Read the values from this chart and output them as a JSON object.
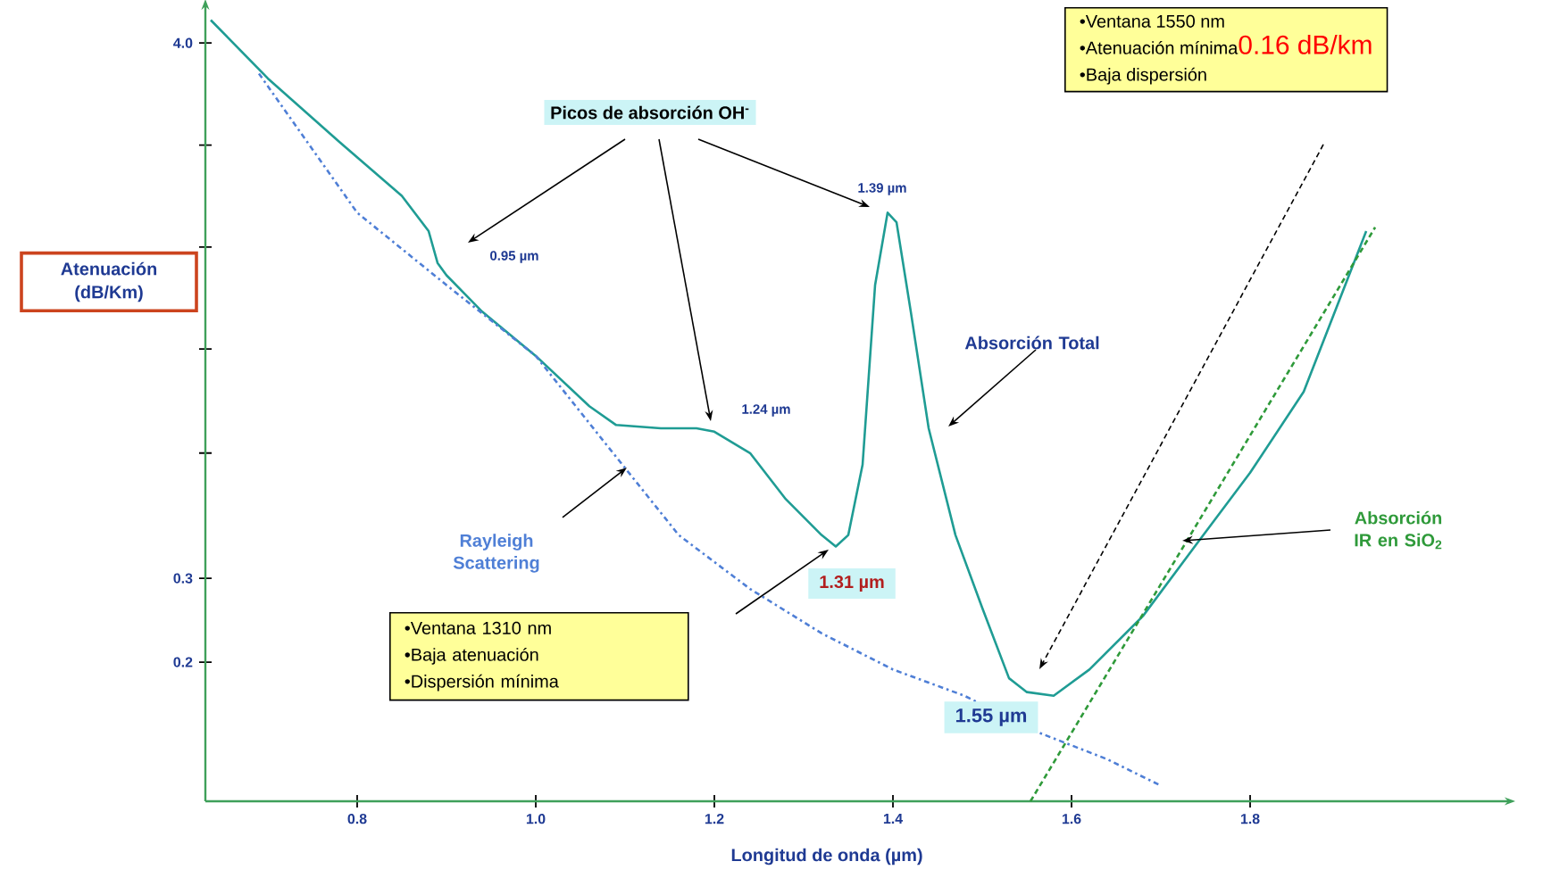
{
  "chart_data": {
    "type": "line",
    "xlabel": "Longitud de onda (µm)",
    "ylabel": "Atenuación (dB/Km)",
    "log": "y",
    "xlim": [
      0.63,
      2.09
    ],
    "ylim": [
      0.102,
      4.8
    ],
    "xticks": [
      0.8,
      {
        "value": 1,
        "label": "1.0"
      },
      1.2,
      1.4,
      1.6,
      1.8
    ],
    "yticks": [
      0.2,
      0.3,
      {
        "value": 0.55,
        "label": null
      },
      {
        "value": 0.91,
        "label": null
      },
      {
        "value": 1.49,
        "label": null
      },
      {
        "value": 2.44,
        "label": null
      },
      {
        "value": 4,
        "label": "4.0"
      }
    ],
    "series": [
      {
        "name": "Absorción Total",
        "color": "#1f9c94",
        "line_style": "solid",
        "x": [
          0.636,
          0.7,
          0.78,
          0.85,
          0.88,
          0.89,
          0.9,
          0.94,
          1.0,
          1.06,
          1.09,
          1.14,
          1.18,
          1.2,
          1.24,
          1.28,
          1.32,
          1.336,
          1.35,
          1.366,
          1.38,
          1.394,
          1.404,
          1.42,
          1.44,
          1.47,
          1.5,
          1.53,
          1.55,
          1.58,
          1.62,
          1.68,
          1.74,
          1.8,
          1.86,
          1.93
        ],
        "values": [
          4.47,
          3.37,
          2.48,
          1.91,
          1.61,
          1.38,
          1.3,
          1.09,
          0.88,
          0.69,
          0.63,
          0.62,
          0.62,
          0.61,
          0.55,
          0.44,
          0.37,
          0.35,
          0.37,
          0.52,
          1.24,
          1.76,
          1.68,
          1.09,
          0.62,
          0.37,
          0.26,
          0.185,
          0.173,
          0.17,
          0.193,
          0.25,
          0.354,
          0.5,
          0.74,
          1.61
        ]
      },
      {
        "name": "Rayleigh Scattering",
        "color": "#4f7fd6",
        "line_style": "dashed",
        "x": [
          0.69,
          0.8,
          0.9,
          1.0,
          1.08,
          1.16,
          1.24,
          1.32,
          1.4,
          1.48,
          1.56,
          1.64,
          1.7
        ],
        "values": [
          3.45,
          1.76,
          1.24,
          0.88,
          0.57,
          0.37,
          0.285,
          0.23,
          0.193,
          0.17,
          0.143,
          0.125,
          0.11
        ]
      },
      {
        "name": "Absorción IR en SiO$_{2}$",
        "color": "#2f9a3a",
        "line_style": "dotted",
        "x": [
          1.554,
          1.94
        ],
        "values": [
          0.102,
          1.64
        ]
      }
    ],
    "annotations": [
      "Picos de absorción OH$^{-}$",
      "0.95 µm",
      "1.24 µm",
      "1.39 µm",
      "1.31 µm",
      "1.55 µm",
      "•Ventana 1310 nm",
      "•Baja atenuación",
      "•Dispersión mínima",
      "•Ventana 1550 nm",
      "•Atenuación mínima",
      "0.16 dB/km",
      "•Baja dispersión"
    ]
  }
}
